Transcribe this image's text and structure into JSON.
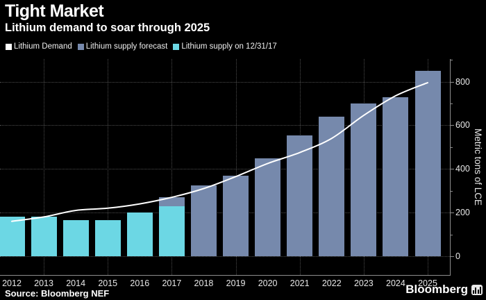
{
  "header": {
    "title": "Tight Market",
    "subtitle": "Lithium demand to soar through 2025"
  },
  "legend": {
    "items": [
      {
        "label": "Lithium Demand",
        "color": "#ffffff"
      },
      {
        "label": "Lithium supply forecast",
        "color": "#7689AC"
      },
      {
        "label": "Lithium supply on 12/31/17",
        "color": "#6CD7E4"
      }
    ]
  },
  "footer": {
    "source": "Source: Bloomberg NEF",
    "branding": "Bloomberg"
  },
  "chart_data": {
    "type": "bar+line",
    "title": "Tight Market",
    "subtitle": "Lithium demand to soar through 2025",
    "categories": [
      "2012",
      "2013",
      "2014",
      "2015",
      "2016",
      "2017",
      "2018",
      "2019",
      "2020",
      "2021",
      "2022",
      "2023",
      "2024",
      "2025"
    ],
    "series": [
      {
        "name": "Lithium Demand",
        "type": "line",
        "color": "#ffffff",
        "values": [
          160,
          180,
          210,
          220,
          240,
          270,
          310,
          365,
          425,
          475,
          540,
          645,
          735,
          795
        ]
      },
      {
        "name": "Lithium supply forecast",
        "type": "bar",
        "color": "#7689AC",
        "values": [
          null,
          null,
          null,
          null,
          null,
          270,
          325,
          370,
          450,
          555,
          640,
          700,
          730,
          850
        ]
      },
      {
        "name": "Lithium supply on 12/31/17",
        "type": "bar",
        "color": "#6CD7E4",
        "values": [
          180,
          180,
          165,
          165,
          200,
          230,
          null,
          null,
          null,
          null,
          null,
          null,
          null,
          null
        ]
      }
    ],
    "xlabel": "",
    "ylabel": "Metric tons of LCE",
    "ylim": [
      0,
      900
    ],
    "yticks_labeled": [
      0,
      200,
      400,
      600,
      800
    ],
    "yticks_minor": [
      100,
      300,
      500,
      700,
      900
    ],
    "grid": "dotted",
    "vertical_gridline_categories": [
      "2013",
      "2015",
      "2017",
      "2019",
      "2021",
      "2023",
      "2025"
    ],
    "legend_position": "top",
    "y_axis_side": "right"
  }
}
